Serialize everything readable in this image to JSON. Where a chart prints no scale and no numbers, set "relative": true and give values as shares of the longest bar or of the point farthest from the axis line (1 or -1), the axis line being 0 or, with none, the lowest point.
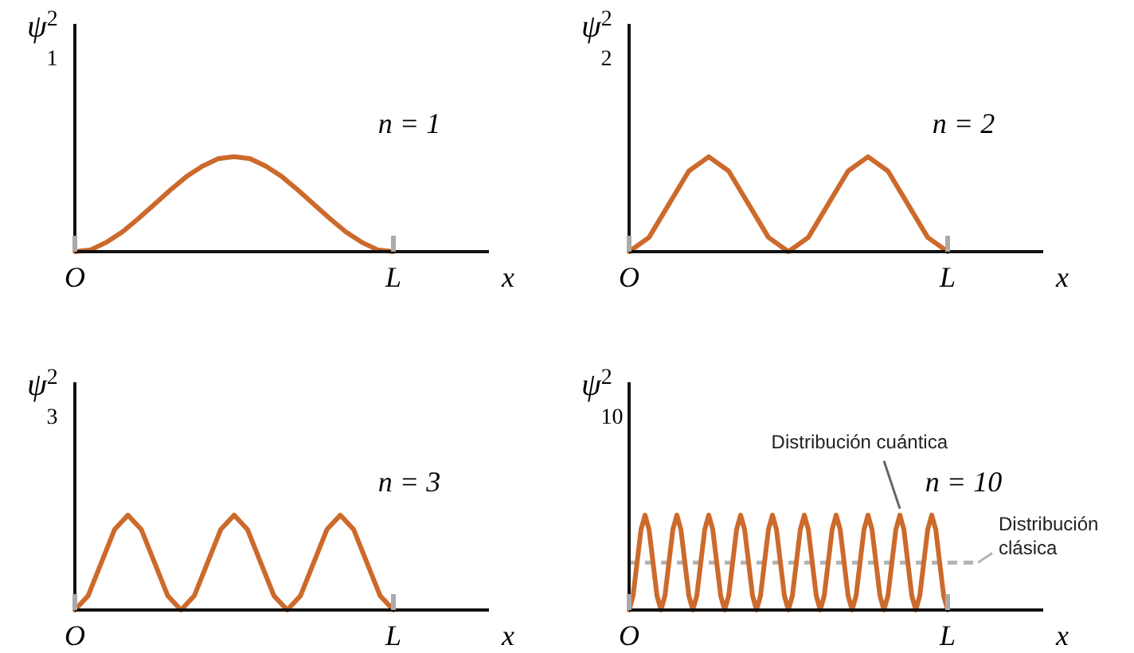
{
  "chart_data": [
    {
      "type": "line",
      "relative": true,
      "color": "#cc6a2c",
      "xlabel": "x",
      "ylabel": "ψ$^{2}$$_{1}$",
      "annotations": [
        "n = 1"
      ],
      "categories": [
        "O",
        null,
        null,
        null,
        null,
        null,
        null,
        null,
        null,
        null,
        null,
        null,
        null,
        null,
        null,
        null,
        null,
        null,
        null,
        null,
        "L"
      ],
      "values": [
        0,
        0.02,
        0.1,
        0.21,
        0.35,
        0.5,
        0.65,
        0.79,
        0.9,
        0.98,
        1,
        0.98,
        0.9,
        0.79,
        0.65,
        0.5,
        0.35,
        0.21,
        0.1,
        0.02,
        0
      ]
    },
    {
      "type": "line",
      "relative": true,
      "color": "#cc6a2c",
      "xlabel": "x",
      "ylabel": "ψ$^{2}$$_{2}$",
      "annotations": [
        "n = 2"
      ],
      "categories": [
        "O",
        null,
        null,
        null,
        null,
        null,
        null,
        null,
        null,
        null,
        null,
        null,
        null,
        null,
        null,
        null,
        "L"
      ],
      "values": [
        0,
        0.15,
        0.5,
        0.85,
        1,
        0.85,
        0.5,
        0.15,
        0,
        0.15,
        0.5,
        0.85,
        1,
        0.85,
        0.5,
        0.15,
        0
      ]
    },
    {
      "type": "line",
      "relative": true,
      "color": "#cc6a2c",
      "xlabel": "x",
      "ylabel": "ψ$^{2}$$_{3}$",
      "annotations": [
        "n = 3"
      ],
      "categories": [
        "O",
        null,
        null,
        null,
        null,
        null,
        null,
        null,
        null,
        null,
        null,
        null,
        null,
        null,
        null,
        null,
        null,
        null,
        null,
        null,
        null,
        null,
        null,
        null,
        "L"
      ],
      "values": [
        0,
        0.15,
        0.5,
        0.85,
        1,
        0.85,
        0.5,
        0.15,
        0,
        0.15,
        0.5,
        0.85,
        1,
        0.85,
        0.5,
        0.15,
        0,
        0.15,
        0.5,
        0.85,
        1,
        0.85,
        0.5,
        0.15,
        0
      ]
    },
    {
      "type": "line",
      "relative": true,
      "color": "#cc6a2c",
      "xlabel": "x",
      "ylabel": "ψ$^{2}$$_{10}$",
      "annotations": [
        "Distribución cuántica",
        "n = 10"
      ],
      "ref_lines": [
        {
          "axis": "y",
          "value": 0.5,
          "label": "Distribución clásica",
          "color": "#b4b4b4",
          "line_style": "dashed"
        }
      ],
      "categories": [
        "O",
        null,
        null,
        null,
        null,
        null,
        null,
        null,
        null,
        null,
        null,
        null,
        null,
        null,
        null,
        null,
        null,
        null,
        null,
        null,
        null,
        null,
        null,
        null,
        null,
        null,
        null,
        null,
        null,
        null,
        null,
        null,
        null,
        null,
        null,
        null,
        null,
        null,
        null,
        null,
        null,
        null,
        null,
        null,
        null,
        null,
        null,
        null,
        null,
        null,
        null,
        null,
        null,
        null,
        null,
        null,
        null,
        null,
        null,
        null,
        null,
        null,
        null,
        null,
        null,
        null,
        null,
        null,
        null,
        null,
        null,
        null,
        null,
        null,
        null,
        null,
        null,
        null,
        null,
        null,
        "L"
      ],
      "values": [
        0,
        0.15,
        0.5,
        0.85,
        1,
        0.85,
        0.5,
        0.15,
        0,
        0.15,
        0.5,
        0.85,
        1,
        0.85,
        0.5,
        0.15,
        0,
        0.15,
        0.5,
        0.85,
        1,
        0.85,
        0.5,
        0.15,
        0,
        0.15,
        0.5,
        0.85,
        1,
        0.85,
        0.5,
        0.15,
        0,
        0.15,
        0.5,
        0.85,
        1,
        0.85,
        0.5,
        0.15,
        0,
        0.15,
        0.5,
        0.85,
        1,
        0.85,
        0.5,
        0.15,
        0,
        0.15,
        0.5,
        0.85,
        1,
        0.85,
        0.5,
        0.15,
        0,
        0.15,
        0.5,
        0.85,
        1,
        0.85,
        0.5,
        0.15,
        0,
        0.15,
        0.5,
        0.85,
        1,
        0.85,
        0.5,
        0.15,
        0,
        0.15,
        0.5,
        0.85,
        1,
        0.85,
        0.5,
        0.15,
        0
      ]
    }
  ]
}
